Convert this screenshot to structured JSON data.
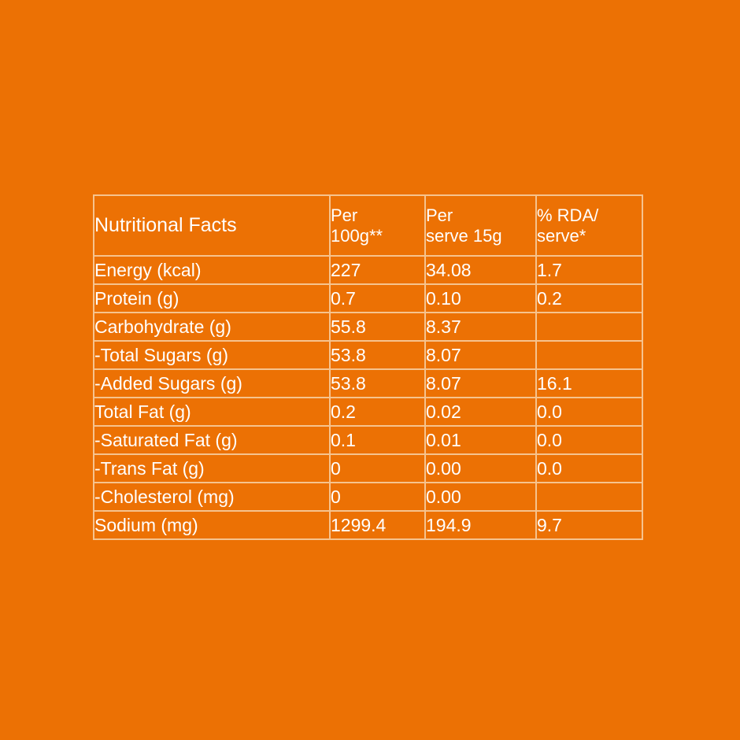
{
  "colors": {
    "background": "#EC7104",
    "border": "#F6C38E",
    "text": "#FFFFFF"
  },
  "table": {
    "header": {
      "title": "Nutritional Facts",
      "col1": [
        "Per",
        "100g**"
      ],
      "col2": [
        "Per",
        "serve 15g"
      ],
      "col3": [
        "% RDA/",
        "serve*"
      ]
    },
    "rows": [
      {
        "label": "Energy (kcal)",
        "per100": "227",
        "perServe": "34.08",
        "rda": "1.7"
      },
      {
        "label": "Protein (g)",
        "per100": "0.7",
        "perServe": "0.10",
        "rda": "0.2"
      },
      {
        "label": "Carbohydrate (g)",
        "per100": "55.8",
        "perServe": "8.37",
        "rda": ""
      },
      {
        "label": "-Total Sugars (g)",
        "per100": "53.8",
        "perServe": "8.07",
        "rda": ""
      },
      {
        "label": "-Added Sugars (g)",
        "per100": "53.8",
        "perServe": "8.07",
        "rda": "16.1"
      },
      {
        "label": "Total Fat (g)",
        "per100": "0.2",
        "perServe": "0.02",
        "rda": "0.0"
      },
      {
        "label": "-Saturated Fat (g)",
        "per100": "0.1",
        "perServe": "0.01",
        "rda": "0.0"
      },
      {
        "label": "-Trans Fat (g)",
        "per100": "0",
        "perServe": "0.00",
        "rda": "0.0"
      },
      {
        "label": "-Cholesterol (mg)",
        "per100": "0",
        "perServe": "0.00",
        "rda": ""
      },
      {
        "label": "Sodium (mg)",
        "per100": "1299.4",
        "perServe": "194.9",
        "rda": "9.7"
      }
    ]
  }
}
